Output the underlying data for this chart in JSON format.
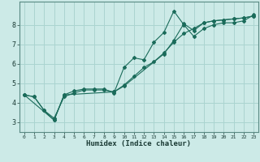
{
  "title": "",
  "xlabel": "Humidex (Indice chaleur)",
  "ylabel": "",
  "background_color": "#cceae7",
  "grid_color": "#aad4d0",
  "line_color": "#1a6b5a",
  "xlim": [
    -0.5,
    23.5
  ],
  "ylim": [
    2.5,
    9.2
  ],
  "xticks": [
    0,
    1,
    2,
    3,
    4,
    5,
    6,
    7,
    8,
    9,
    10,
    11,
    12,
    13,
    14,
    15,
    16,
    17,
    18,
    19,
    20,
    21,
    22,
    23
  ],
  "yticks": [
    3,
    4,
    5,
    6,
    7,
    8
  ],
  "series1_x": [
    0,
    1,
    2,
    3,
    4,
    5,
    6,
    7,
    8,
    9,
    10,
    11,
    12,
    13,
    14,
    15,
    16,
    17,
    18,
    19,
    20,
    21,
    22,
    23
  ],
  "series1_y": [
    4.4,
    4.3,
    3.6,
    3.1,
    4.4,
    4.6,
    4.7,
    4.7,
    4.7,
    4.5,
    5.8,
    6.3,
    6.2,
    7.1,
    7.6,
    8.7,
    8.0,
    7.4,
    7.8,
    8.0,
    8.1,
    8.1,
    8.2,
    8.5
  ],
  "series2_x": [
    0,
    1,
    2,
    3,
    4,
    5,
    6,
    7,
    8,
    9,
    10,
    11,
    12,
    13,
    14,
    15,
    16,
    17,
    18,
    19,
    20,
    21,
    22,
    23
  ],
  "series2_y": [
    4.4,
    4.3,
    3.6,
    3.2,
    4.3,
    4.5,
    4.65,
    4.65,
    4.65,
    4.55,
    4.9,
    5.35,
    5.8,
    6.1,
    6.55,
    7.1,
    7.55,
    7.8,
    8.1,
    8.2,
    8.25,
    8.3,
    8.35,
    8.45
  ],
  "series3_x": [
    0,
    3,
    4,
    9,
    10,
    14,
    15,
    16,
    17,
    18,
    19,
    20,
    21,
    22,
    23
  ],
  "series3_y": [
    4.4,
    3.1,
    4.4,
    4.55,
    4.85,
    6.5,
    7.2,
    8.05,
    7.7,
    8.1,
    8.2,
    8.25,
    8.3,
    8.35,
    8.45
  ]
}
